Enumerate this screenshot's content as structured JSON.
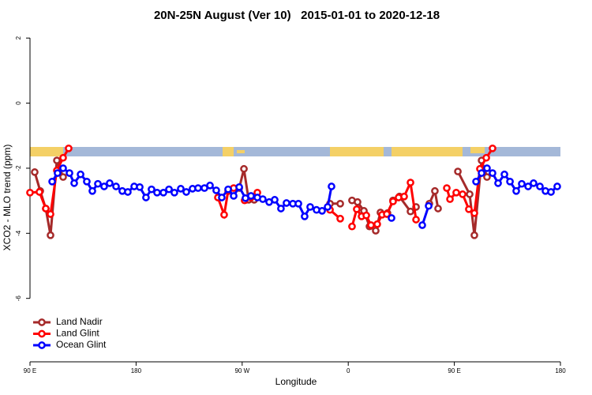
{
  "chart_data": {
    "type": "line",
    "title": "20N-25N August (Ver 10)   2015-01-01 to 2020-12-18",
    "x_label": "Longitude",
    "y_label": "XCO2 - MLO trend (ppm)",
    "xlim": [
      90,
      540
    ],
    "ylim": [
      -7.95,
      2.15
    ],
    "xticks": [
      {
        "value": 90,
        "label": "90 E"
      },
      180,
      {
        "value": 270,
        "label": "90 W"
      },
      {
        "value": 360,
        "label": "0"
      },
      {
        "value": 450,
        "label": "90 E"
      },
      {
        "value": 540,
        "label": "180"
      }
    ],
    "yticks": [
      -6,
      -4,
      -2,
      0,
      2
    ],
    "legend": "bottomleft",
    "series": [
      {
        "name": "Land Nadir",
        "color": "#a52a2a",
        "x": [
          94.0,
          98.7,
          103.4,
          107.4,
          112.8,
          118.1,
          null,
          267.5,
          271.5,
          275.5,
          280.2,
          null,
          344.5,
          353.2,
          null,
          363.2,
          367.9,
          373.3,
          378.0,
          383.3,
          387.3,
          393.3,
          398.0,
          403.4,
          412.8,
          417.5,
          null,
          428.8,
          433.5,
          436.2,
          null,
          453.0,
          463.0,
          467.0,
          473.1,
          477.7
        ],
        "values": [
          -2.12,
          -2.7,
          -3.24,
          -4.06,
          -1.76,
          -2.27,
          null,
          -2.61,
          -2.02,
          -2.97,
          -2.97,
          null,
          -3.09,
          -3.09,
          null,
          -2.99,
          -3.04,
          -3.31,
          -3.79,
          -3.92,
          -3.36,
          -3.38,
          -2.99,
          -2.87,
          -3.33,
          -3.19,
          null,
          -3.09,
          -2.7,
          -3.24,
          null,
          -2.1,
          -2.8,
          -4.06,
          -1.76,
          -2.27
        ]
      },
      {
        "name": "Land Glint",
        "color": "#ff0000",
        "x": [
          90.0,
          98.0,
          103.4,
          107.4,
          112.8,
          118.1,
          122.8,
          null,
          249.4,
          254.7,
          258.1,
          262.8,
          null,
          272.1,
          277.5,
          282.9,
          null,
          344.5,
          353.2,
          null,
          363.2,
          367.2,
          371.3,
          375.3,
          379.3,
          384.6,
          388.7,
          392.7,
          398.0,
          402.7,
          407.4,
          412.8,
          417.5,
          null,
          443.6,
          446.3,
          451.6,
          457.0,
          462.3,
          467.0,
          471.7,
          477.1,
          482.4
        ],
        "values": [
          -2.75,
          -2.73,
          -3.24,
          -3.41,
          -2.07,
          -1.68,
          -1.39,
          null,
          -2.9,
          -3.43,
          -2.7,
          -2.61,
          null,
          -2.99,
          -2.9,
          -2.75,
          null,
          -3.28,
          -3.55,
          null,
          -3.79,
          -3.26,
          -3.48,
          -3.45,
          -3.75,
          -3.72,
          -3.43,
          -3.41,
          -3.02,
          -2.9,
          -2.87,
          -2.44,
          -3.58,
          null,
          -2.61,
          -2.95,
          -2.75,
          -2.8,
          -3.26,
          -3.38,
          -2.02,
          -1.68,
          -1.39
        ]
      },
      {
        "name": "Ocean Glint",
        "color": "#0000ff",
        "x": [
          108.8,
          113.4,
          118.1,
          123.5,
          127.5,
          132.9,
          138.2,
          142.9,
          147.6,
          152.9,
          157.6,
          163.0,
          168.3,
          173.0,
          178.4,
          183.1,
          188.4,
          193.1,
          197.8,
          203.2,
          207.9,
          212.5,
          217.9,
          222.6,
          227.9,
          232.6,
          238.0,
          242.7,
          248.0,
          252.7,
          258.1,
          262.8,
          267.5,
          272.8,
          277.5,
          282.9,
          287.5,
          292.9,
          297.6,
          302.9,
          307.6,
          313.0,
          317.7,
          323.0,
          327.7,
          333.1,
          337.8,
          342.5,
          345.8,
          null,
          396.7,
          null,
          422.8,
          428.2,
          null,
          468.4,
          473.1,
          477.7,
          482.4,
          487.1,
          492.5,
          497.2,
          502.5,
          507.2,
          512.6,
          517.2,
          522.6,
          527.3,
          532.0,
          537.3
        ],
        "values": [
          -2.41,
          -2.15,
          -2.0,
          -2.15,
          -2.46,
          -2.19,
          -2.41,
          -2.7,
          -2.48,
          -2.56,
          -2.46,
          -2.56,
          -2.7,
          -2.73,
          -2.56,
          -2.58,
          -2.9,
          -2.65,
          -2.75,
          -2.75,
          -2.65,
          -2.75,
          -2.63,
          -2.73,
          -2.63,
          -2.61,
          -2.61,
          -2.53,
          -2.68,
          -2.9,
          -2.65,
          -2.85,
          -2.58,
          -2.92,
          -2.85,
          -2.9,
          -2.95,
          -3.04,
          -2.97,
          -3.24,
          -3.07,
          -3.09,
          -3.09,
          -3.48,
          -3.19,
          -3.28,
          -3.31,
          -3.19,
          -2.56,
          null,
          -3.53,
          null,
          -3.75,
          -3.16,
          null,
          -2.41,
          -2.15,
          -2.0,
          -2.15,
          -2.46,
          -2.19,
          -2.41,
          -2.7,
          -2.48,
          -2.56,
          -2.46,
          -2.56,
          -2.7,
          -2.73,
          -2.56
        ]
      }
    ]
  }
}
